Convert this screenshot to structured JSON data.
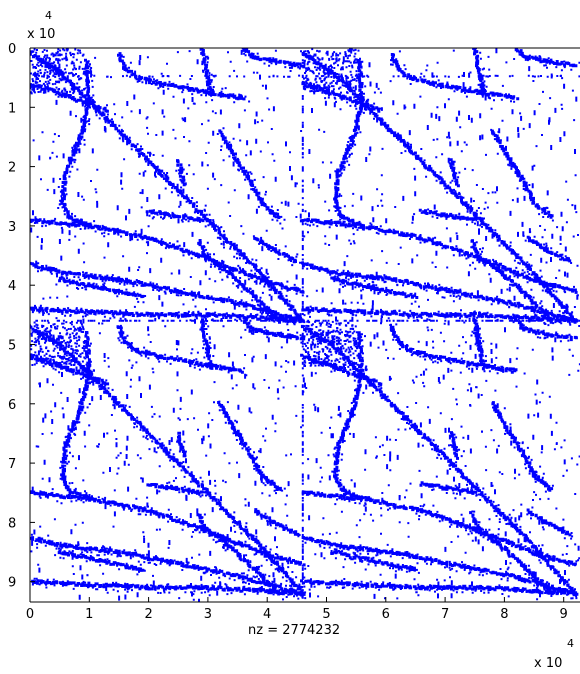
{
  "chart_data": {
    "type": "scatter",
    "subtype": "spy sparsity pattern",
    "title": "",
    "xlabel": "nz = 2774232",
    "ylabel": "",
    "x_exponent_label": "x 10",
    "x_exponent_power": "4",
    "y_exponent_label": "x 10",
    "y_exponent_power": "4",
    "xlim": [
      0,
      9.3
    ],
    "ylim": [
      0,
      9.3
    ],
    "y_reversed": true,
    "x_ticks": [
      0,
      1,
      2,
      3,
      4,
      5,
      6,
      7,
      8,
      9
    ],
    "x_tick_labels": [
      "0",
      "1",
      "2",
      "3",
      "4",
      "5",
      "6",
      "7",
      "8",
      "9"
    ],
    "y_ticks": [
      0,
      1,
      2,
      3,
      4,
      5,
      6,
      7,
      8,
      9
    ],
    "y_tick_labels": [
      "0",
      "1",
      "2",
      "3",
      "4",
      "5",
      "6",
      "7",
      "8",
      "9"
    ],
    "grid": false,
    "box": true,
    "marker_color": "#0000ff",
    "block_size": 4.6,
    "block_tiling": [
      2,
      2
    ],
    "pattern_curves": [
      [
        [
          0.0,
          0.1
        ],
        [
          0.5,
          0.4
        ],
        [
          1.0,
          0.9
        ],
        [
          1.6,
          1.5
        ],
        [
          2.3,
          2.2
        ],
        [
          3.0,
          2.9
        ],
        [
          3.8,
          3.7
        ],
        [
          4.6,
          4.6
        ]
      ],
      [
        [
          0.0,
          0.6
        ],
        [
          0.6,
          0.8
        ],
        [
          1.0,
          0.95
        ],
        [
          1.3,
          1.05
        ]
      ],
      [
        [
          0.0,
          2.9
        ],
        [
          1.0,
          3.0
        ],
        [
          2.0,
          3.2
        ],
        [
          3.0,
          3.55
        ],
        [
          4.0,
          3.95
        ],
        [
          4.6,
          4.1
        ]
      ],
      [
        [
          0.0,
          3.65
        ],
        [
          0.6,
          3.8
        ],
        [
          1.5,
          3.9
        ],
        [
          2.5,
          4.1
        ],
        [
          3.5,
          4.3
        ],
        [
          4.6,
          4.6
        ]
      ],
      [
        [
          0.0,
          4.4
        ],
        [
          1.0,
          4.45
        ],
        [
          2.0,
          4.5
        ],
        [
          3.0,
          4.5
        ],
        [
          4.6,
          4.6
        ]
      ],
      [
        [
          1.5,
          0.1
        ],
        [
          1.6,
          0.35
        ],
        [
          1.8,
          0.5
        ],
        [
          2.2,
          0.6
        ],
        [
          3.0,
          0.75
        ],
        [
          3.6,
          0.85
        ]
      ],
      [
        [
          2.9,
          0.0
        ],
        [
          2.95,
          0.3
        ],
        [
          3.0,
          0.5
        ],
        [
          3.05,
          0.8
        ]
      ],
      [
        [
          3.6,
          0.0
        ],
        [
          3.75,
          0.15
        ],
        [
          4.1,
          0.22
        ],
        [
          4.6,
          0.3
        ]
      ],
      [
        [
          0.95,
          0.2
        ],
        [
          1.0,
          0.9
        ],
        [
          0.85,
          1.5
        ],
        [
          0.6,
          2.1
        ],
        [
          0.55,
          2.6
        ],
        [
          0.65,
          2.85
        ],
        [
          1.0,
          3.0
        ]
      ],
      [
        [
          3.2,
          1.4
        ],
        [
          3.5,
          1.9
        ],
        [
          3.75,
          2.3
        ],
        [
          3.9,
          2.6
        ],
        [
          4.2,
          2.85
        ]
      ],
      [
        [
          2.85,
          3.25
        ],
        [
          2.95,
          3.5
        ],
        [
          3.3,
          3.75
        ],
        [
          3.8,
          4.2
        ],
        [
          4.2,
          4.6
        ]
      ],
      [
        [
          2.5,
          1.9
        ],
        [
          2.55,
          2.1
        ],
        [
          2.6,
          2.3
        ]
      ],
      [
        [
          0.5,
          3.9
        ],
        [
          1.2,
          4.05
        ],
        [
          1.9,
          4.2
        ]
      ],
      [
        [
          3.8,
          3.2
        ],
        [
          4.1,
          3.4
        ],
        [
          4.5,
          3.6
        ]
      ],
      [
        [
          2.0,
          2.75
        ],
        [
          2.4,
          2.82
        ],
        [
          2.9,
          2.9
        ]
      ]
    ],
    "noise_points": 1600,
    "seed": 42
  }
}
